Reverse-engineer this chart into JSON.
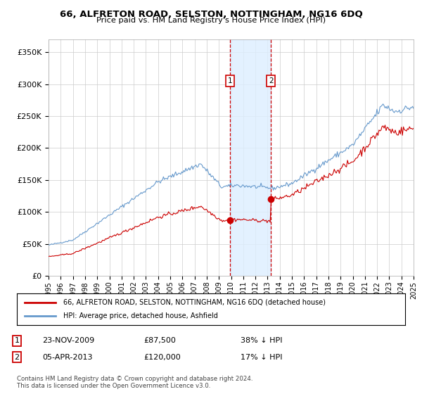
{
  "title": "66, ALFRETON ROAD, SELSTON, NOTTINGHAM, NG16 6DQ",
  "subtitle": "Price paid vs. HM Land Registry's House Price Index (HPI)",
  "legend_line1": "66, ALFRETON ROAD, SELSTON, NOTTINGHAM, NG16 6DQ (detached house)",
  "legend_line2": "HPI: Average price, detached house, Ashfield",
  "transaction1_date": "23-NOV-2009",
  "transaction1_price": "£87,500",
  "transaction1_hpi": "38% ↓ HPI",
  "transaction1_year": 2009.9,
  "transaction1_value": 87500,
  "transaction2_date": "05-APR-2013",
  "transaction2_price": "£120,000",
  "transaction2_hpi": "17% ↓ HPI",
  "transaction2_year": 2013.27,
  "transaction2_value": 120000,
  "footer": "Contains HM Land Registry data © Crown copyright and database right 2024.\nThis data is licensed under the Open Government Licence v3.0.",
  "red_color": "#cc0000",
  "blue_color": "#6699cc",
  "shading_color": "#ddeeff",
  "ylim": [
    0,
    370000
  ],
  "yticks": [
    0,
    50000,
    100000,
    150000,
    200000,
    250000,
    300000,
    350000
  ],
  "xmin": 1995,
  "xmax": 2025
}
